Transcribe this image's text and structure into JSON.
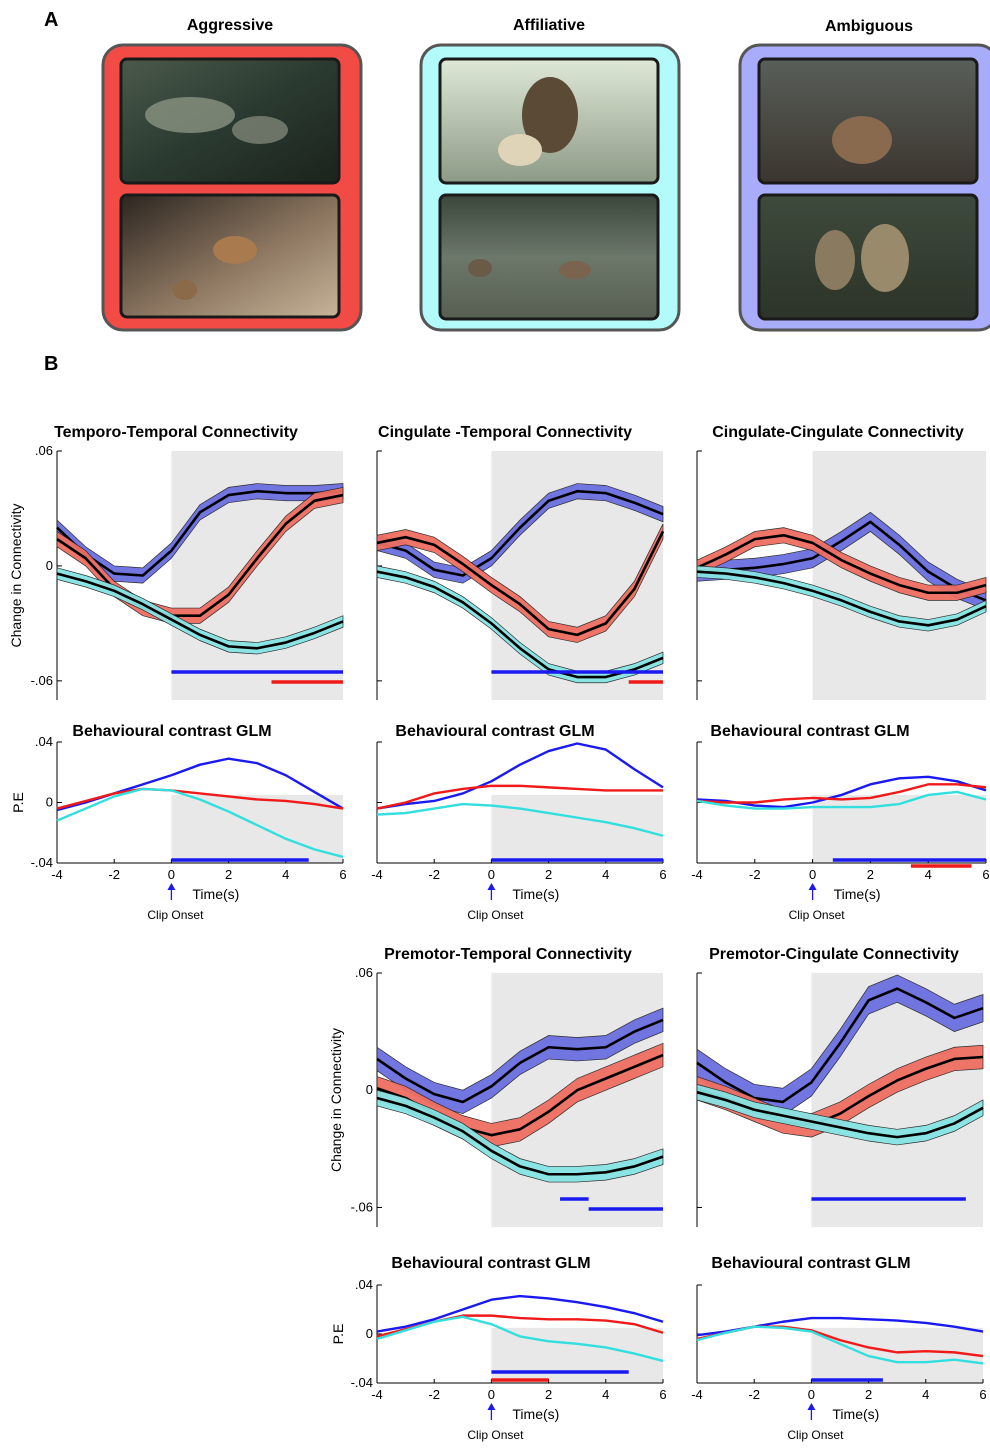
{
  "panel_a": {
    "label": "A",
    "categories": [
      {
        "title": "Aggressive",
        "color": "#f24a45"
      },
      {
        "title": "Affiliative",
        "color": "#b3fbfb"
      },
      {
        "title": "Ambiguous",
        "color": "#a9acfa"
      }
    ]
  },
  "panel_b": {
    "label": "B"
  },
  "colors": {
    "aggressive": "#1a1af0",
    "affiliative": "#f01a1a",
    "ambiguous": "#33dede",
    "mean_line": "#000000",
    "shade": "#e8e8e8"
  },
  "time_axis": {
    "label": "Time(s)",
    "onset_label": "Clip Onset",
    "ticks": [
      "-4",
      "-2",
      "0",
      "2",
      "4",
      "6"
    ]
  },
  "chart_data": [
    {
      "type": "line",
      "title": "Temporo-Temporal Connectivity",
      "ylabel": "Change in Connectivity",
      "yticks": [
        ".06",
        "0",
        "-.06"
      ],
      "ylim": [
        -0.07,
        0.06
      ],
      "xlim": [
        -4,
        6
      ],
      "shaded_from": 0,
      "x": [
        -4,
        -3,
        -2,
        -1,
        0,
        1,
        2,
        3,
        4,
        5,
        6
      ],
      "series": [
        {
          "color": "blue",
          "band": 0.004,
          "values": [
            0.02,
            0.006,
            -0.004,
            -0.005,
            0.008,
            0.028,
            0.037,
            0.039,
            0.038,
            0.038,
            0.039
          ]
        },
        {
          "color": "red",
          "band": 0.004,
          "values": [
            0.014,
            0.004,
            -0.012,
            -0.022,
            -0.026,
            -0.026,
            -0.015,
            0.004,
            0.022,
            0.034,
            0.037
          ]
        },
        {
          "color": "cyan",
          "band": 0.003,
          "values": [
            -0.004,
            -0.008,
            -0.013,
            -0.02,
            -0.028,
            -0.036,
            -0.042,
            -0.043,
            -0.04,
            -0.035,
            -0.029
          ]
        }
      ],
      "sig_bars": [
        {
          "color": "blue",
          "from": 0,
          "to": 6
        },
        {
          "color": "red",
          "from": 3.5,
          "to": 6
        }
      ]
    },
    {
      "type": "line",
      "title": "Cingulate -Temporal Connectivity",
      "ylim": [
        -0.07,
        0.06
      ],
      "xlim": [
        -4,
        6
      ],
      "shaded_from": 0,
      "x": [
        -4,
        -3,
        -2,
        -1,
        0,
        1,
        2,
        3,
        4,
        5,
        6
      ],
      "series": [
        {
          "color": "blue",
          "band": 0.004,
          "values": [
            0.012,
            0.008,
            -0.002,
            -0.005,
            0.004,
            0.02,
            0.034,
            0.039,
            0.038,
            0.033,
            0.027
          ]
        },
        {
          "color": "red",
          "band": 0.004,
          "values": [
            0.012,
            0.015,
            0.011,
            0.001,
            -0.01,
            -0.02,
            -0.033,
            -0.036,
            -0.03,
            -0.012,
            0.018
          ]
        },
        {
          "color": "cyan",
          "band": 0.003,
          "values": [
            -0.003,
            -0.006,
            -0.011,
            -0.019,
            -0.03,
            -0.043,
            -0.054,
            -0.058,
            -0.058,
            -0.054,
            -0.048
          ]
        }
      ],
      "sig_bars": [
        {
          "color": "blue",
          "from": 0,
          "to": 6
        },
        {
          "color": "red",
          "from": 4.8,
          "to": 6
        }
      ]
    },
    {
      "type": "line",
      "title": "Cingulate-Cingulate Connectivity",
      "ylim": [
        -0.07,
        0.06
      ],
      "xlim": [
        -4,
        6
      ],
      "shaded_from": 0,
      "x": [
        -4,
        -3,
        -2,
        -1,
        0,
        1,
        2,
        3,
        4,
        5,
        6
      ],
      "series": [
        {
          "color": "blue",
          "band": 0.005,
          "values": [
            -0.003,
            -0.002,
            -0.001,
            0.001,
            0.004,
            0.013,
            0.023,
            0.011,
            -0.003,
            -0.012,
            -0.018
          ]
        },
        {
          "color": "red",
          "band": 0.004,
          "values": [
            -0.001,
            0.006,
            0.014,
            0.016,
            0.012,
            0.003,
            -0.004,
            -0.01,
            -0.014,
            -0.014,
            -0.01
          ]
        },
        {
          "color": "cyan",
          "band": 0.003,
          "values": [
            -0.003,
            -0.004,
            -0.006,
            -0.009,
            -0.013,
            -0.018,
            -0.024,
            -0.029,
            -0.031,
            -0.028,
            -0.021
          ]
        }
      ],
      "sig_bars": []
    },
    {
      "type": "line",
      "title": "Behavioural contrast GLM",
      "ylabel": "P.E",
      "yticks": [
        ".04",
        "0",
        "-.04"
      ],
      "ylim": [
        -0.04,
        0.04
      ],
      "xlim": [
        -4,
        6
      ],
      "shaded_from": 0,
      "x": [
        -4,
        -3,
        -2,
        -1,
        0,
        1,
        2,
        3,
        4,
        5,
        6
      ],
      "series": [
        {
          "color": "blue",
          "values": [
            -0.005,
            0.0,
            0.006,
            0.012,
            0.018,
            0.025,
            0.029,
            0.026,
            0.018,
            0.007,
            -0.004
          ]
        },
        {
          "color": "red",
          "values": [
            -0.004,
            0.001,
            0.006,
            0.009,
            0.008,
            0.006,
            0.004,
            0.002,
            0.001,
            -0.001,
            -0.004
          ]
        },
        {
          "color": "cyan",
          "values": [
            -0.012,
            -0.004,
            0.004,
            0.009,
            0.008,
            0.002,
            -0.006,
            -0.015,
            -0.024,
            -0.031,
            -0.036
          ]
        }
      ],
      "sig_bars": [
        {
          "color": "blue",
          "from": 0,
          "to": 4.8
        }
      ]
    },
    {
      "type": "line",
      "title": "Behavioural contrast GLM",
      "ylim": [
        -0.04,
        0.04
      ],
      "xlim": [
        -4,
        6
      ],
      "shaded_from": 0,
      "x": [
        -4,
        -3,
        -2,
        -1,
        0,
        1,
        2,
        3,
        4,
        5,
        6
      ],
      "series": [
        {
          "color": "blue",
          "values": [
            -0.004,
            -0.001,
            0.001,
            0.006,
            0.014,
            0.025,
            0.034,
            0.039,
            0.035,
            0.022,
            0.01
          ]
        },
        {
          "color": "red",
          "values": [
            -0.004,
            0.0,
            0.006,
            0.009,
            0.011,
            0.011,
            0.01,
            0.009,
            0.008,
            0.008,
            0.008
          ]
        },
        {
          "color": "cyan",
          "values": [
            -0.008,
            -0.007,
            -0.004,
            -0.001,
            -0.002,
            -0.004,
            -0.007,
            -0.01,
            -0.013,
            -0.017,
            -0.022
          ]
        }
      ],
      "sig_bars": [
        {
          "color": "blue",
          "from": 0,
          "to": 6
        }
      ]
    },
    {
      "type": "line",
      "title": "Behavioural contrast GLM",
      "ylim": [
        -0.04,
        0.04
      ],
      "xlim": [
        -4,
        6
      ],
      "shaded_from": 0,
      "x": [
        -4,
        -3,
        -2,
        -1,
        0,
        1,
        2,
        3,
        4,
        5,
        6
      ],
      "series": [
        {
          "color": "blue",
          "values": [
            0.002,
            0.001,
            -0.002,
            -0.003,
            0.0,
            0.005,
            0.012,
            0.016,
            0.017,
            0.014,
            0.008
          ]
        },
        {
          "color": "red",
          "values": [
            0.001,
            0.0,
            0.0,
            0.002,
            0.003,
            0.002,
            0.003,
            0.007,
            0.012,
            0.012,
            0.01
          ]
        },
        {
          "color": "cyan",
          "values": [
            0.001,
            -0.002,
            -0.004,
            -0.004,
            -0.003,
            -0.003,
            -0.003,
            -0.001,
            0.005,
            0.007,
            0.002
          ]
        }
      ],
      "sig_bars": [
        {
          "color": "blue",
          "from": 0.7,
          "to": 6
        },
        {
          "color": "red",
          "from": 3.4,
          "to": 5.5
        }
      ]
    },
    {
      "type": "line",
      "title": "Premotor-Temporal Connectivity",
      "ylabel": "Change in Connectivity",
      "yticks": [
        ".06",
        "0",
        "-.06"
      ],
      "ylim": [
        -0.07,
        0.06
      ],
      "xlim": [
        -4,
        6
      ],
      "shaded_from": 0,
      "x": [
        -4,
        -3,
        -2,
        -1,
        0,
        1,
        2,
        3,
        4,
        5,
        6
      ],
      "series": [
        {
          "color": "blue",
          "band": 0.006,
          "values": [
            0.016,
            0.006,
            -0.002,
            -0.006,
            0.002,
            0.014,
            0.022,
            0.021,
            0.022,
            0.03,
            0.036
          ]
        },
        {
          "color": "red",
          "band": 0.006,
          "values": [
            0.001,
            -0.004,
            -0.012,
            -0.019,
            -0.023,
            -0.02,
            -0.011,
            0.0,
            0.006,
            0.012,
            0.018
          ]
        },
        {
          "color": "cyan",
          "band": 0.004,
          "values": [
            -0.004,
            -0.008,
            -0.014,
            -0.021,
            -0.031,
            -0.039,
            -0.043,
            -0.043,
            -0.042,
            -0.039,
            -0.034
          ]
        }
      ],
      "sig_bars": [
        {
          "color": "blue",
          "from": 2.4,
          "to": 3.4
        },
        {
          "color": "blue",
          "from": 3.4,
          "to": 6
        }
      ]
    },
    {
      "type": "line",
      "title": "Premotor-Cingulate Connectivity",
      "ylim": [
        -0.07,
        0.06
      ],
      "xlim": [
        -4,
        6
      ],
      "shaded_from": 0,
      "x": [
        -4,
        -3,
        -2,
        -1,
        0,
        1,
        2,
        3,
        4,
        5,
        6
      ],
      "series": [
        {
          "color": "blue",
          "band": 0.007,
          "values": [
            0.014,
            0.004,
            -0.004,
            -0.006,
            0.004,
            0.024,
            0.046,
            0.052,
            0.045,
            0.037,
            0.042
          ]
        },
        {
          "color": "red",
          "band": 0.006,
          "values": [
            0.001,
            -0.004,
            -0.01,
            -0.016,
            -0.018,
            -0.012,
            -0.003,
            0.005,
            0.011,
            0.016,
            0.017
          ]
        },
        {
          "color": "cyan",
          "band": 0.004,
          "values": [
            -0.001,
            -0.005,
            -0.01,
            -0.013,
            -0.016,
            -0.019,
            -0.022,
            -0.024,
            -0.022,
            -0.017,
            -0.009
          ]
        }
      ],
      "sig_bars": [
        {
          "color": "blue",
          "from": 0,
          "to": 5.4
        }
      ]
    },
    {
      "type": "line",
      "title": "Behavioural contrast GLM",
      "ylabel": "P.E",
      "yticks": [
        ".04",
        "0",
        "-.04"
      ],
      "ylim": [
        -0.04,
        0.04
      ],
      "xlim": [
        -4,
        6
      ],
      "shaded_from": 0,
      "x": [
        -4,
        -3,
        -2,
        -1,
        0,
        1,
        2,
        3,
        4,
        5,
        6
      ],
      "series": [
        {
          "color": "blue",
          "values": [
            0.002,
            0.006,
            0.012,
            0.02,
            0.028,
            0.031,
            0.029,
            0.026,
            0.022,
            0.017,
            0.01
          ]
        },
        {
          "color": "red",
          "values": [
            -0.002,
            0.004,
            0.01,
            0.015,
            0.015,
            0.013,
            0.012,
            0.012,
            0.011,
            0.008,
            0.001
          ]
        },
        {
          "color": "cyan",
          "values": [
            -0.004,
            0.003,
            0.01,
            0.014,
            0.008,
            -0.002,
            -0.006,
            -0.008,
            -0.011,
            -0.016,
            -0.022
          ]
        }
      ],
      "sig_bars": [
        {
          "color": "blue",
          "from": 0,
          "to": 4.8
        },
        {
          "color": "red",
          "from": 0,
          "to": 2
        }
      ]
    },
    {
      "type": "line",
      "title": "Behavioural contrast GLM",
      "ylim": [
        -0.04,
        0.04
      ],
      "xlim": [
        -4,
        6
      ],
      "shaded_from": 0,
      "x": [
        -4,
        -3,
        -2,
        -1,
        0,
        1,
        2,
        3,
        4,
        5,
        6
      ],
      "series": [
        {
          "color": "blue",
          "values": [
            -0.001,
            0.002,
            0.006,
            0.01,
            0.013,
            0.013,
            0.012,
            0.011,
            0.009,
            0.006,
            0.002
          ]
        },
        {
          "color": "red",
          "values": [
            -0.004,
            0.001,
            0.006,
            0.006,
            0.003,
            -0.005,
            -0.011,
            -0.015,
            -0.014,
            -0.015,
            -0.018
          ]
        },
        {
          "color": "cyan",
          "values": [
            -0.005,
            0.001,
            0.006,
            0.005,
            0.002,
            -0.008,
            -0.018,
            -0.023,
            -0.023,
            -0.021,
            -0.024
          ]
        }
      ],
      "sig_bars": [
        {
          "color": "blue",
          "from": 0,
          "to": 2.5
        }
      ]
    }
  ]
}
